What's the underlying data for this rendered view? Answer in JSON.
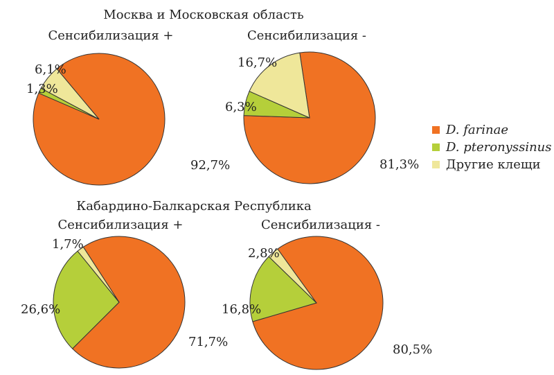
{
  "chart_data": {
    "type": "pie",
    "legend": {
      "position": "right",
      "entries": [
        {
          "label": "D. farinae",
          "color": "#F07223",
          "italic": true
        },
        {
          "label": "D. pteronyssinus",
          "color": "#B5CF3A",
          "italic": true
        },
        {
          "label": "Другие клещи",
          "color": "#EFE79A",
          "italic": false
        }
      ]
    },
    "groups": [
      {
        "title": "Москва и Московская область"
      },
      {
        "title": "Кабардино-Балкарская Республика"
      }
    ],
    "pies": [
      {
        "group": 0,
        "subtitle": "Сенсибилизация +",
        "values": [
          92.7,
          1.3,
          6.1
        ],
        "labels": [
          "92,7%",
          "1,3%",
          "6,1%"
        ]
      },
      {
        "group": 0,
        "subtitle": "Сенсибилизация -",
        "values": [
          81.3,
          6.3,
          16.7
        ],
        "labels": [
          "81,3%",
          "6,3%",
          "16,7%"
        ]
      },
      {
        "group": 1,
        "subtitle": "Сенсибилизация +",
        "values": [
          71.7,
          26.6,
          1.7
        ],
        "labels": [
          "71,7%",
          "26,6%",
          "1,7%"
        ]
      },
      {
        "group": 1,
        "subtitle": "Сенсибилизация -",
        "values": [
          80.5,
          16.8,
          2.8
        ],
        "labels": [
          "80,5%",
          "16,8%",
          "2,8%"
        ]
      }
    ]
  }
}
